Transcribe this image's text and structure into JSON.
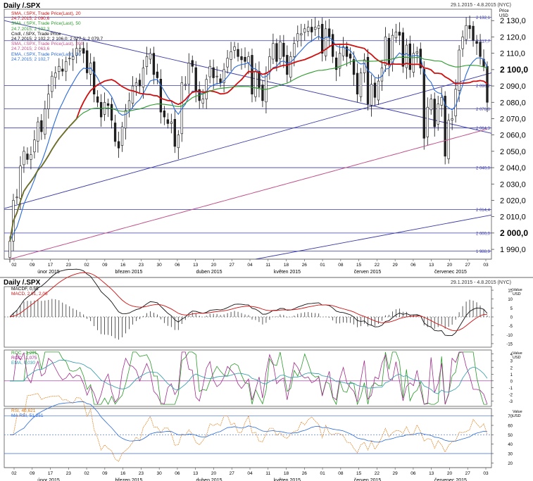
{
  "header": {
    "title": "Daily /.SPX",
    "range": "29.1.2015 - 4.8.2015 (NYC)",
    "price_unit": [
      "Price",
      "USD"
    ]
  },
  "legend_main": [
    {
      "label": "SMA, /.SPX, Trade Price(Last), 20",
      "value": "24.7.2015; 2 090,6",
      "color": "#d01010"
    },
    {
      "label": "SMA, /.SPX, Trade Price(Last), 50",
      "value": "24.7.2015; 2 102,3",
      "color": "#2a9a2a"
    },
    {
      "label": "Cndl, /.SPX, Trade Price",
      "value": "24.7.2015; 2 102,2; 2 106,0; 2 077,1; 2 079,7",
      "color": "#000000"
    },
    {
      "label": "SMA, /.SPX, Trade Price(Last), 200",
      "value": "24.7.2015; 2 063,6",
      "color": "#c0508a"
    },
    {
      "label": "EMA, /.SPX, Trade Price(Last), 10",
      "value": "24.7.2015; 2 102,7",
      "color": "#2a6ad8"
    }
  ],
  "legend_macd": [
    {
      "label": "MACDF, 0,55",
      "color": "#000000"
    },
    {
      "label": "MACD, 2,91, 2,06",
      "color": "#d01010"
    }
  ],
  "legend_roc": [
    {
      "label": "ROC, -1,291",
      "color": "#2a9a2a"
    },
    {
      "label": "ROC, -1,075",
      "color": "#a02c8c"
    },
    {
      "label": "EMA, 0,030",
      "color": "#2a9aa8"
    }
  ],
  "legend_rsi": [
    {
      "label": "RSI, 40,621",
      "color": "#e07a10"
    },
    {
      "label": "MA RSI, 51,251",
      "color": "#2a6ad8"
    }
  ],
  "value_unit": [
    "Value",
    "USD"
  ],
  "main_yticks": [
    "2 130,0",
    "2 120,0",
    "2 110,0",
    "2 100,0",
    "2 090,0",
    "2 080,0",
    "2 070,0",
    "2 060,0",
    "2 050,0",
    "2 040,0",
    "2 030,0",
    "2 020,0",
    "2 010,0",
    "2 000,0",
    "1 990,0"
  ],
  "bold_ticks": [
    "2 100,0",
    "2 000,0"
  ],
  "hline_labels": [
    "2 132,1",
    "2 117,7",
    "2 090,2",
    "2 076,0",
    "2 064,3",
    "2 040,0",
    "2 014,4",
    "2 000,0",
    "1 988,9"
  ],
  "macd_yticks": [
    "15",
    "10",
    "5",
    "0",
    "-5",
    "-10",
    "-15"
  ],
  "roc_yticks": [
    "4",
    "3",
    "2",
    "1",
    "0",
    "-1",
    "-2",
    "-3"
  ],
  "rsi_yticks": [
    "70",
    "60",
    "50",
    "40",
    "30",
    "20"
  ],
  "xaxis": {
    "day_labels": [
      "02",
      "09",
      "17",
      "23",
      "02",
      "09",
      "16",
      "23",
      "30",
      "06",
      "13",
      "20",
      "27",
      "04",
      "11",
      "18",
      "26",
      "01",
      "08",
      "15",
      "22",
      "29",
      "06",
      "13",
      "20",
      "27",
      "03"
    ],
    "month_labels": [
      "únor 2015",
      "březen 2015",
      "duben 2015",
      "květen 2015",
      "červen 2015",
      "červenec 2015"
    ]
  },
  "chart_data": {
    "type": "candlestick",
    "title": "Daily /.SPX",
    "date_range": "29.1.2015 - 4.8.2015 (NYC)",
    "ylim": [
      1984,
      2137
    ],
    "last_candle": {
      "date": "24.7.2015",
      "open": 2102.2,
      "high": 2106.0,
      "low": 2077.1,
      "close": 2079.7
    },
    "support_resistance_levels": [
      2132.1,
      2117.7,
      2090.2,
      2076.0,
      2064.3,
      2040.0,
      2014.4,
      2000.0,
      1988.9
    ],
    "closes": [
      1995,
      2020,
      2022,
      2041,
      2050,
      2045,
      2048,
      2057,
      2068,
      2062,
      2076,
      2085,
      2096,
      2098,
      2102,
      2099,
      2105,
      2107,
      2108,
      2113,
      2113,
      2110,
      2098,
      2104,
      2085,
      2080,
      2071,
      2080,
      2078,
      2069,
      2056,
      2052,
      2065,
      2075,
      2081,
      2090,
      2092,
      2090,
      2101,
      2108,
      2110,
      2097,
      2095,
      2074,
      2071,
      2067,
      2068,
      2053,
      2060,
      2092,
      2091,
      2104,
      2102,
      2087,
      2081,
      2082,
      2094,
      2102,
      2095,
      2096,
      2092,
      2100,
      2107,
      2111,
      2114,
      2108,
      2106,
      2105,
      2108,
      2085,
      2099,
      2089,
      2081,
      2098,
      2108,
      2116,
      2105,
      2117,
      2108,
      2097,
      2108,
      2116,
      2122,
      2122,
      2125,
      2126,
      2123,
      2126,
      2127,
      2110,
      2125,
      2120,
      2108,
      2100,
      2110,
      2114,
      2108,
      2107,
      2097,
      2085,
      2098,
      2106,
      2079,
      2091,
      2083,
      2093,
      2101,
      2120,
      2103,
      2121,
      2123,
      2121,
      2102,
      2115,
      2100,
      2110,
      2111,
      2101,
      2058,
      2077,
      2082,
      2065,
      2079,
      2083,
      2047,
      2069,
      2070,
      2088,
      2112,
      2120,
      2127,
      2125,
      2118,
      2116,
      2108,
      2102,
      2080
    ],
    "series": [
      {
        "name": "SMA, /.SPX, Trade Price(Last), 20",
        "last": 2090.6
      },
      {
        "name": "SMA, /.SPX, Trade Price(Last), 50",
        "last": 2102.3
      },
      {
        "name": "SMA, /.SPX, Trade Price(Last), 200",
        "last": 2063.6
      },
      {
        "name": "EMA, /.SPX, Trade Price(Last), 10",
        "last": 2102.7
      }
    ],
    "indicators": [
      {
        "name": "MACD",
        "values": [
          0.55,
          2.91,
          2.06
        ],
        "ylim": [
          -15,
          15
        ]
      },
      {
        "name": "ROC",
        "values": [
          -1.291,
          -1.075,
          0.03
        ],
        "ylim": [
          -3,
          4
        ]
      },
      {
        "name": "RSI",
        "values": [
          40.621,
          51.251
        ],
        "ylim": [
          20,
          70
        ]
      }
    ]
  }
}
